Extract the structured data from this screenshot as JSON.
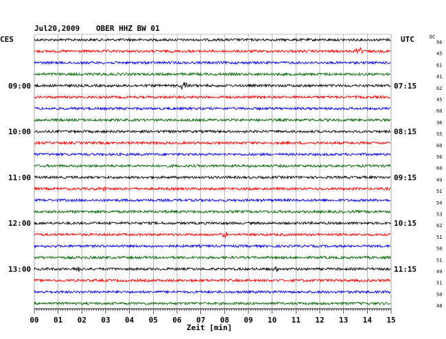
{
  "header": {
    "date": "Jul20,2009",
    "station": "OBER HHZ BW 01",
    "left_tz": "CES",
    "right_tz": "UTC",
    "dc_label": "DC"
  },
  "chart_data": {
    "type": "line",
    "title": "Jul20,2009   OBER HHZ BW 01",
    "xlabel": "Zeit [min]",
    "x_ticks": [
      "00",
      "01",
      "02",
      "03",
      "04",
      "05",
      "06",
      "07",
      "08",
      "09",
      "10",
      "11",
      "12",
      "13",
      "14",
      "15"
    ],
    "xlim": [
      0,
      15
    ],
    "left_time_labels": [
      {
        "trace": 4,
        "label": "09:00"
      },
      {
        "trace": 8,
        "label": "10:00"
      },
      {
        "trace": 12,
        "label": "11:00"
      },
      {
        "trace": 16,
        "label": "12:00"
      },
      {
        "trace": 20,
        "label": "13:00"
      }
    ],
    "right_time_labels": [
      {
        "trace": 4,
        "label": "07:15"
      },
      {
        "trace": 8,
        "label": "08:15"
      },
      {
        "trace": 12,
        "label": "09:15"
      },
      {
        "trace": 16,
        "label": "10:15"
      },
      {
        "trace": 20,
        "label": "11:15"
      }
    ],
    "dc_values": [
      "56",
      "45",
      "61",
      "41",
      "62",
      "45",
      "60",
      "36",
      "55",
      "60",
      "56",
      "60",
      "49",
      "51",
      "54",
      "53",
      "62",
      "51",
      "50",
      "51",
      "49",
      "51",
      "50",
      "48"
    ],
    "trace_colors": [
      "#000000",
      "#ee0000",
      "#0000dd",
      "#006400"
    ],
    "events": [
      {
        "trace": 1,
        "minute": 13.7,
        "amp": 6
      },
      {
        "trace": 4,
        "minute": 6.3,
        "amp": 9
      },
      {
        "trace": 13,
        "minute": 2.9,
        "amp": 4
      },
      {
        "trace": 17,
        "minute": 8.0,
        "amp": 4
      },
      {
        "trace": 20,
        "minute": 1.9,
        "amp": 4
      },
      {
        "trace": 20,
        "minute": 10.2,
        "amp": 3
      }
    ]
  }
}
